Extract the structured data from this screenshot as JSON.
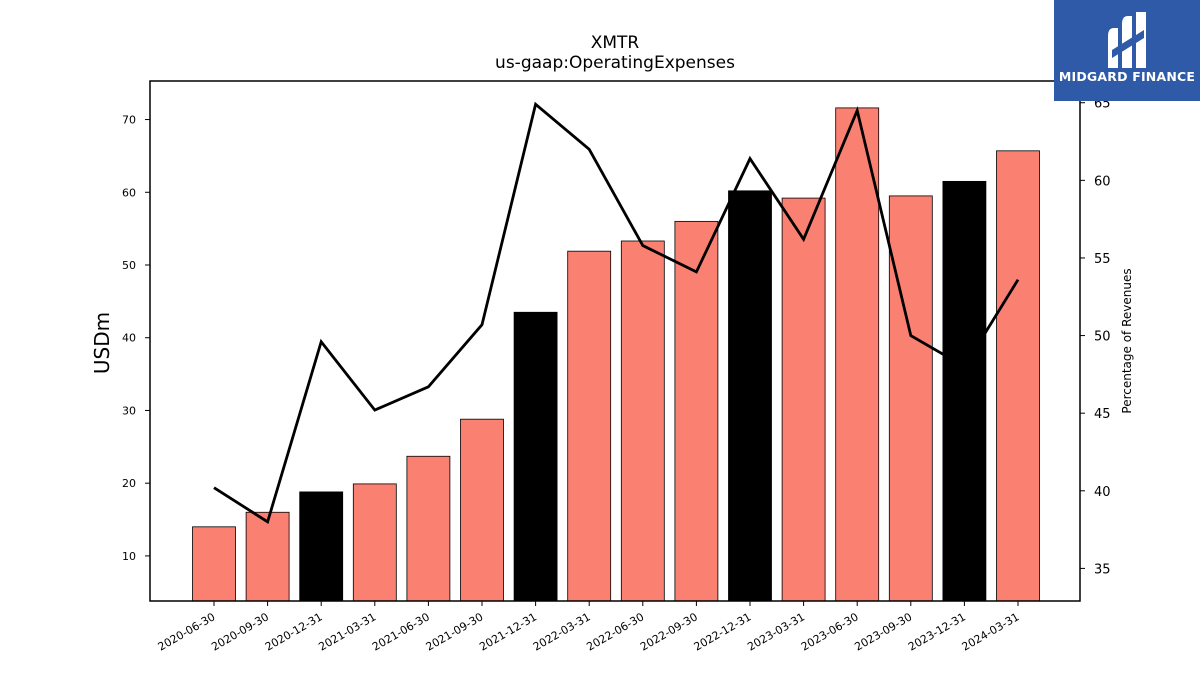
{
  "chart_data": {
    "type": "bar",
    "title": "XMTR",
    "subtitle": "us-gaap:OperatingExpenses",
    "ylabel": "USDm",
    "y2label": "Percentage of Revenues",
    "categories": [
      "2020-06-30",
      "2020-09-30",
      "2020-12-31",
      "2021-03-31",
      "2021-06-30",
      "2021-09-30",
      "2021-12-31",
      "2022-03-31",
      "2022-06-30",
      "2022-09-30",
      "2022-12-31",
      "2023-03-31",
      "2023-06-30",
      "2023-09-30",
      "2023-12-31",
      "2024-03-31"
    ],
    "series": [
      {
        "type": "bar",
        "values": [
          14.0,
          16.0,
          18.8,
          19.9,
          23.7,
          28.8,
          43.5,
          51.9,
          53.3,
          56.0,
          60.2,
          59.2,
          71.6,
          59.5,
          61.5,
          65.7
        ],
        "colors": [
          "#fa8072",
          "#fa8072",
          "#000000",
          "#fa8072",
          "#fa8072",
          "#fa8072",
          "#000000",
          "#fa8072",
          "#fa8072",
          "#fa8072",
          "#000000",
          "#fa8072",
          "#fa8072",
          "#fa8072",
          "#000000",
          "#fa8072"
        ]
      },
      {
        "type": "line",
        "axis": "right",
        "color": "#000000",
        "values": [
          40.2,
          38.0,
          49.6,
          45.2,
          46.7,
          50.7,
          64.9,
          62.0,
          55.8,
          54.1,
          61.4,
          56.2,
          64.5,
          50.0,
          48.0,
          53.6
        ]
      }
    ],
    "ylim": [
      3.8,
      75.3
    ],
    "y2lim": [
      32.9,
      66.4
    ],
    "yticks": [
      10,
      20,
      30,
      40,
      50,
      60,
      70
    ],
    "y2ticks": [
      35,
      40,
      45,
      50,
      55,
      60,
      65
    ],
    "grid": false,
    "legend": "none"
  },
  "logo": {
    "text": "MIDGARD FINANCE",
    "bg": "#2f5aa8"
  }
}
